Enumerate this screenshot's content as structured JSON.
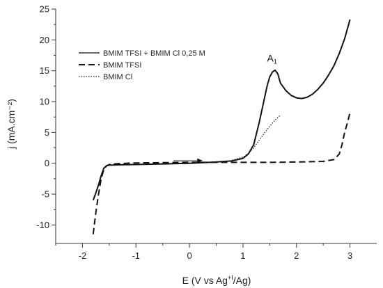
{
  "chart_data": {
    "type": "line",
    "xlabel": "E (V vs Ag",
    "xlabel_sup": "+I",
    "xlabel_tail": "/Ag)",
    "ylabel": "j (mA.cm⁻²)",
    "xlim": [
      -2.5,
      3.5
    ],
    "ylim": [
      -13,
      25
    ],
    "xticks": [
      -2,
      -1,
      0,
      1,
      2,
      3
    ],
    "yticks": [
      -10,
      -5,
      0,
      5,
      10,
      15,
      20,
      25
    ],
    "xtick_labels": [
      "-2",
      "-1",
      "0",
      "1",
      "2",
      "3"
    ],
    "ytick_labels": [
      "-10",
      "-5",
      "0",
      "5",
      "10",
      "15",
      "20",
      "25"
    ],
    "legend_position": "top-left",
    "grid": false,
    "annotation": {
      "text": "A",
      "sub": "1",
      "x": 1.45,
      "y": 16.5
    },
    "arrow": {
      "x_from": -0.3,
      "x_to": 0.25,
      "y": 0.4,
      "direction": "right"
    },
    "series": [
      {
        "name": "BMIM TFSI + BMIM Cl 0,25 M",
        "style": "solid",
        "x": [
          -1.8,
          -1.75,
          -1.7,
          -1.65,
          -1.6,
          -1.55,
          -1.5,
          -1.3,
          -1.0,
          -0.5,
          0.0,
          0.5,
          0.8,
          1.0,
          1.1,
          1.2,
          1.3,
          1.4,
          1.45,
          1.5,
          1.55,
          1.6,
          1.65,
          1.7,
          1.8,
          1.9,
          2.0,
          2.1,
          2.2,
          2.3,
          2.4,
          2.5,
          2.6,
          2.7,
          2.8,
          2.9,
          3.0
        ],
        "y": [
          -6.0,
          -4.8,
          -3.5,
          -2.0,
          -0.8,
          -0.4,
          -0.3,
          -0.25,
          -0.2,
          -0.1,
          0.0,
          0.2,
          0.4,
          0.8,
          1.5,
          3.0,
          6.5,
          10.5,
          12.5,
          14.0,
          14.8,
          15.1,
          14.5,
          13.0,
          11.8,
          11.0,
          10.6,
          10.5,
          10.7,
          11.2,
          12.0,
          13.0,
          14.3,
          15.8,
          17.8,
          20.2,
          23.3
        ]
      },
      {
        "name": "BMIM TFSI",
        "style": "dashed",
        "x": [
          -1.8,
          -1.75,
          -1.7,
          -1.65,
          -1.6,
          -1.55,
          -1.5,
          -1.4,
          -1.2,
          -1.0,
          -0.5,
          0.0,
          0.5,
          1.0,
          1.5,
          2.0,
          2.5,
          2.7,
          2.8,
          2.85,
          2.9,
          2.95,
          3.0
        ],
        "y": [
          -11.5,
          -8.0,
          -5.0,
          -2.5,
          -1.0,
          -0.4,
          -0.2,
          -0.1,
          0.0,
          0.05,
          0.1,
          0.15,
          0.15,
          0.15,
          0.15,
          0.2,
          0.3,
          0.6,
          1.5,
          3.0,
          5.0,
          6.5,
          8.2
        ]
      },
      {
        "name": "BMIM Cl",
        "style": "dotted",
        "x": [
          0.8,
          1.0,
          1.1,
          1.2,
          1.3,
          1.4,
          1.5,
          1.6,
          1.7
        ],
        "y": [
          0.5,
          1.0,
          1.6,
          2.5,
          3.7,
          4.9,
          6.0,
          7.0,
          7.8
        ]
      }
    ]
  }
}
